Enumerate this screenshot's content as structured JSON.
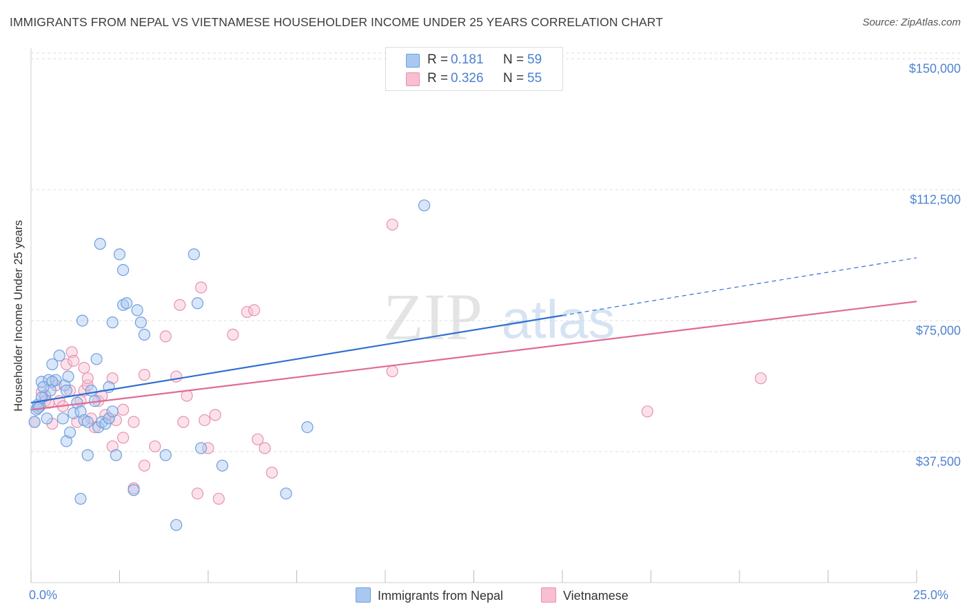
{
  "title": "IMMIGRANTS FROM NEPAL VS VIETNAMESE HOUSEHOLDER INCOME UNDER 25 YEARS CORRELATION CHART",
  "source": "Source: ZipAtlas.com",
  "watermark": {
    "zip": "ZIP",
    "atlas": "atlas"
  },
  "colors": {
    "nepal_fill": "#a9c8f0",
    "nepal_stroke": "#6e9de0",
    "nepal_line": "#2f6fd0",
    "viet_fill": "#f7bfd0",
    "viet_stroke": "#e890ad",
    "viet_line": "#e06a95",
    "axis_text": "#4f83d1",
    "grid": "#dddddd"
  },
  "legend": {
    "r_label": "R =",
    "n_label": "N =",
    "nepal": {
      "r": "0.181",
      "n": "59"
    },
    "viet": {
      "r": "0.326",
      "n": "55"
    }
  },
  "chart_data": {
    "type": "scatter",
    "title": "IMMIGRANTS FROM NEPAL VS VIETNAMESE HOUSEHOLDER INCOME UNDER 25 YEARS CORRELATION CHART",
    "xlabel": "",
    "ylabel": "Householder Income Under 25 years",
    "xlim": [
      0,
      25
    ],
    "ylim": [
      0,
      153000
    ],
    "x_tick_labels": [
      "0.0%",
      "25.0%"
    ],
    "y_ticks": [
      37500,
      75000,
      112500,
      150000
    ],
    "y_tick_labels": [
      "$37,500",
      "$75,000",
      "$112,500",
      "$150,000"
    ],
    "series": [
      {
        "name": "Immigrants from Nepal",
        "trend": {
          "x_start": 0,
          "y_start": 51500,
          "x_solid_end": 15,
          "y_solid_end": 76500,
          "x_end": 25,
          "y_end": 93000
        },
        "points": [
          [
            0.1,
            46000
          ],
          [
            0.15,
            49500
          ],
          [
            0.2,
            51000
          ],
          [
            0.25,
            50500
          ],
          [
            0.3,
            57500
          ],
          [
            0.4,
            53500
          ],
          [
            0.45,
            47000
          ],
          [
            0.5,
            58000
          ],
          [
            0.6,
            62500
          ],
          [
            0.7,
            58000
          ],
          [
            0.8,
            65000
          ],
          [
            0.9,
            47000
          ],
          [
            0.95,
            56500
          ],
          [
            1.0,
            55000
          ],
          [
            1.0,
            40500
          ],
          [
            1.05,
            59000
          ],
          [
            1.1,
            43000
          ],
          [
            1.2,
            48500
          ],
          [
            1.3,
            51500
          ],
          [
            1.4,
            49000
          ],
          [
            1.4,
            24000
          ],
          [
            1.45,
            75000
          ],
          [
            1.5,
            46500
          ],
          [
            1.6,
            46000
          ],
          [
            1.6,
            36500
          ],
          [
            1.7,
            55000
          ],
          [
            1.8,
            52000
          ],
          [
            1.85,
            64000
          ],
          [
            1.9,
            44500
          ],
          [
            1.95,
            97000
          ],
          [
            2.0,
            46000
          ],
          [
            2.1,
            45500
          ],
          [
            2.2,
            56000
          ],
          [
            2.2,
            47000
          ],
          [
            2.3,
            49000
          ],
          [
            2.3,
            74500
          ],
          [
            2.4,
            36500
          ],
          [
            2.5,
            94000
          ],
          [
            2.6,
            89500
          ],
          [
            2.6,
            79500
          ],
          [
            2.7,
            80000
          ],
          [
            2.9,
            26500
          ],
          [
            3.0,
            78000
          ],
          [
            3.1,
            74500
          ],
          [
            3.2,
            71000
          ],
          [
            3.8,
            36500
          ],
          [
            4.1,
            16500
          ],
          [
            4.6,
            94000
          ],
          [
            4.7,
            80000
          ],
          [
            4.8,
            38500
          ],
          [
            5.4,
            33500
          ],
          [
            7.2,
            25500
          ],
          [
            7.8,
            44500
          ],
          [
            11.1,
            108000
          ],
          [
            0.3,
            53000
          ],
          [
            0.6,
            57500
          ],
          [
            0.55,
            55000
          ],
          [
            0.2,
            50000
          ],
          [
            0.35,
            56000
          ]
        ]
      },
      {
        "name": "Vietnamese",
        "trend": {
          "x_start": 0,
          "y_start": 49500,
          "x_end": 25,
          "y_end": 80500
        },
        "points": [
          [
            0.1,
            46000
          ],
          [
            0.3,
            54500
          ],
          [
            0.4,
            52000
          ],
          [
            0.5,
            51500
          ],
          [
            0.6,
            45500
          ],
          [
            0.7,
            56500
          ],
          [
            0.8,
            52000
          ],
          [
            0.9,
            50500
          ],
          [
            1.0,
            62500
          ],
          [
            1.1,
            55000
          ],
          [
            1.15,
            66000
          ],
          [
            1.2,
            63500
          ],
          [
            1.3,
            46000
          ],
          [
            1.4,
            52000
          ],
          [
            1.5,
            61500
          ],
          [
            1.5,
            55000
          ],
          [
            1.6,
            56500
          ],
          [
            1.6,
            58500
          ],
          [
            1.7,
            47000
          ],
          [
            1.8,
            44500
          ],
          [
            1.9,
            52000
          ],
          [
            2.0,
            53500
          ],
          [
            2.1,
            48000
          ],
          [
            2.2,
            47000
          ],
          [
            2.3,
            58500
          ],
          [
            2.3,
            39000
          ],
          [
            2.4,
            46500
          ],
          [
            2.6,
            41500
          ],
          [
            2.6,
            49500
          ],
          [
            2.9,
            46000
          ],
          [
            2.9,
            27000
          ],
          [
            3.2,
            33500
          ],
          [
            3.2,
            59500
          ],
          [
            3.5,
            39000
          ],
          [
            3.8,
            70500
          ],
          [
            4.1,
            59000
          ],
          [
            4.2,
            79500
          ],
          [
            4.3,
            46000
          ],
          [
            4.4,
            53500
          ],
          [
            4.7,
            25500
          ],
          [
            4.8,
            84500
          ],
          [
            4.9,
            46500
          ],
          [
            5.0,
            38500
          ],
          [
            5.2,
            48000
          ],
          [
            5.3,
            24000
          ],
          [
            5.7,
            71000
          ],
          [
            6.1,
            77500
          ],
          [
            6.3,
            78000
          ],
          [
            6.4,
            41000
          ],
          [
            6.6,
            38500
          ],
          [
            6.8,
            31500
          ],
          [
            10.2,
            102500
          ],
          [
            10.2,
            60500
          ],
          [
            17.4,
            49000
          ],
          [
            20.6,
            58500
          ]
        ]
      }
    ]
  },
  "bottom_legend": {
    "nepal": "Immigrants from Nepal",
    "viet": "Vietnamese"
  }
}
